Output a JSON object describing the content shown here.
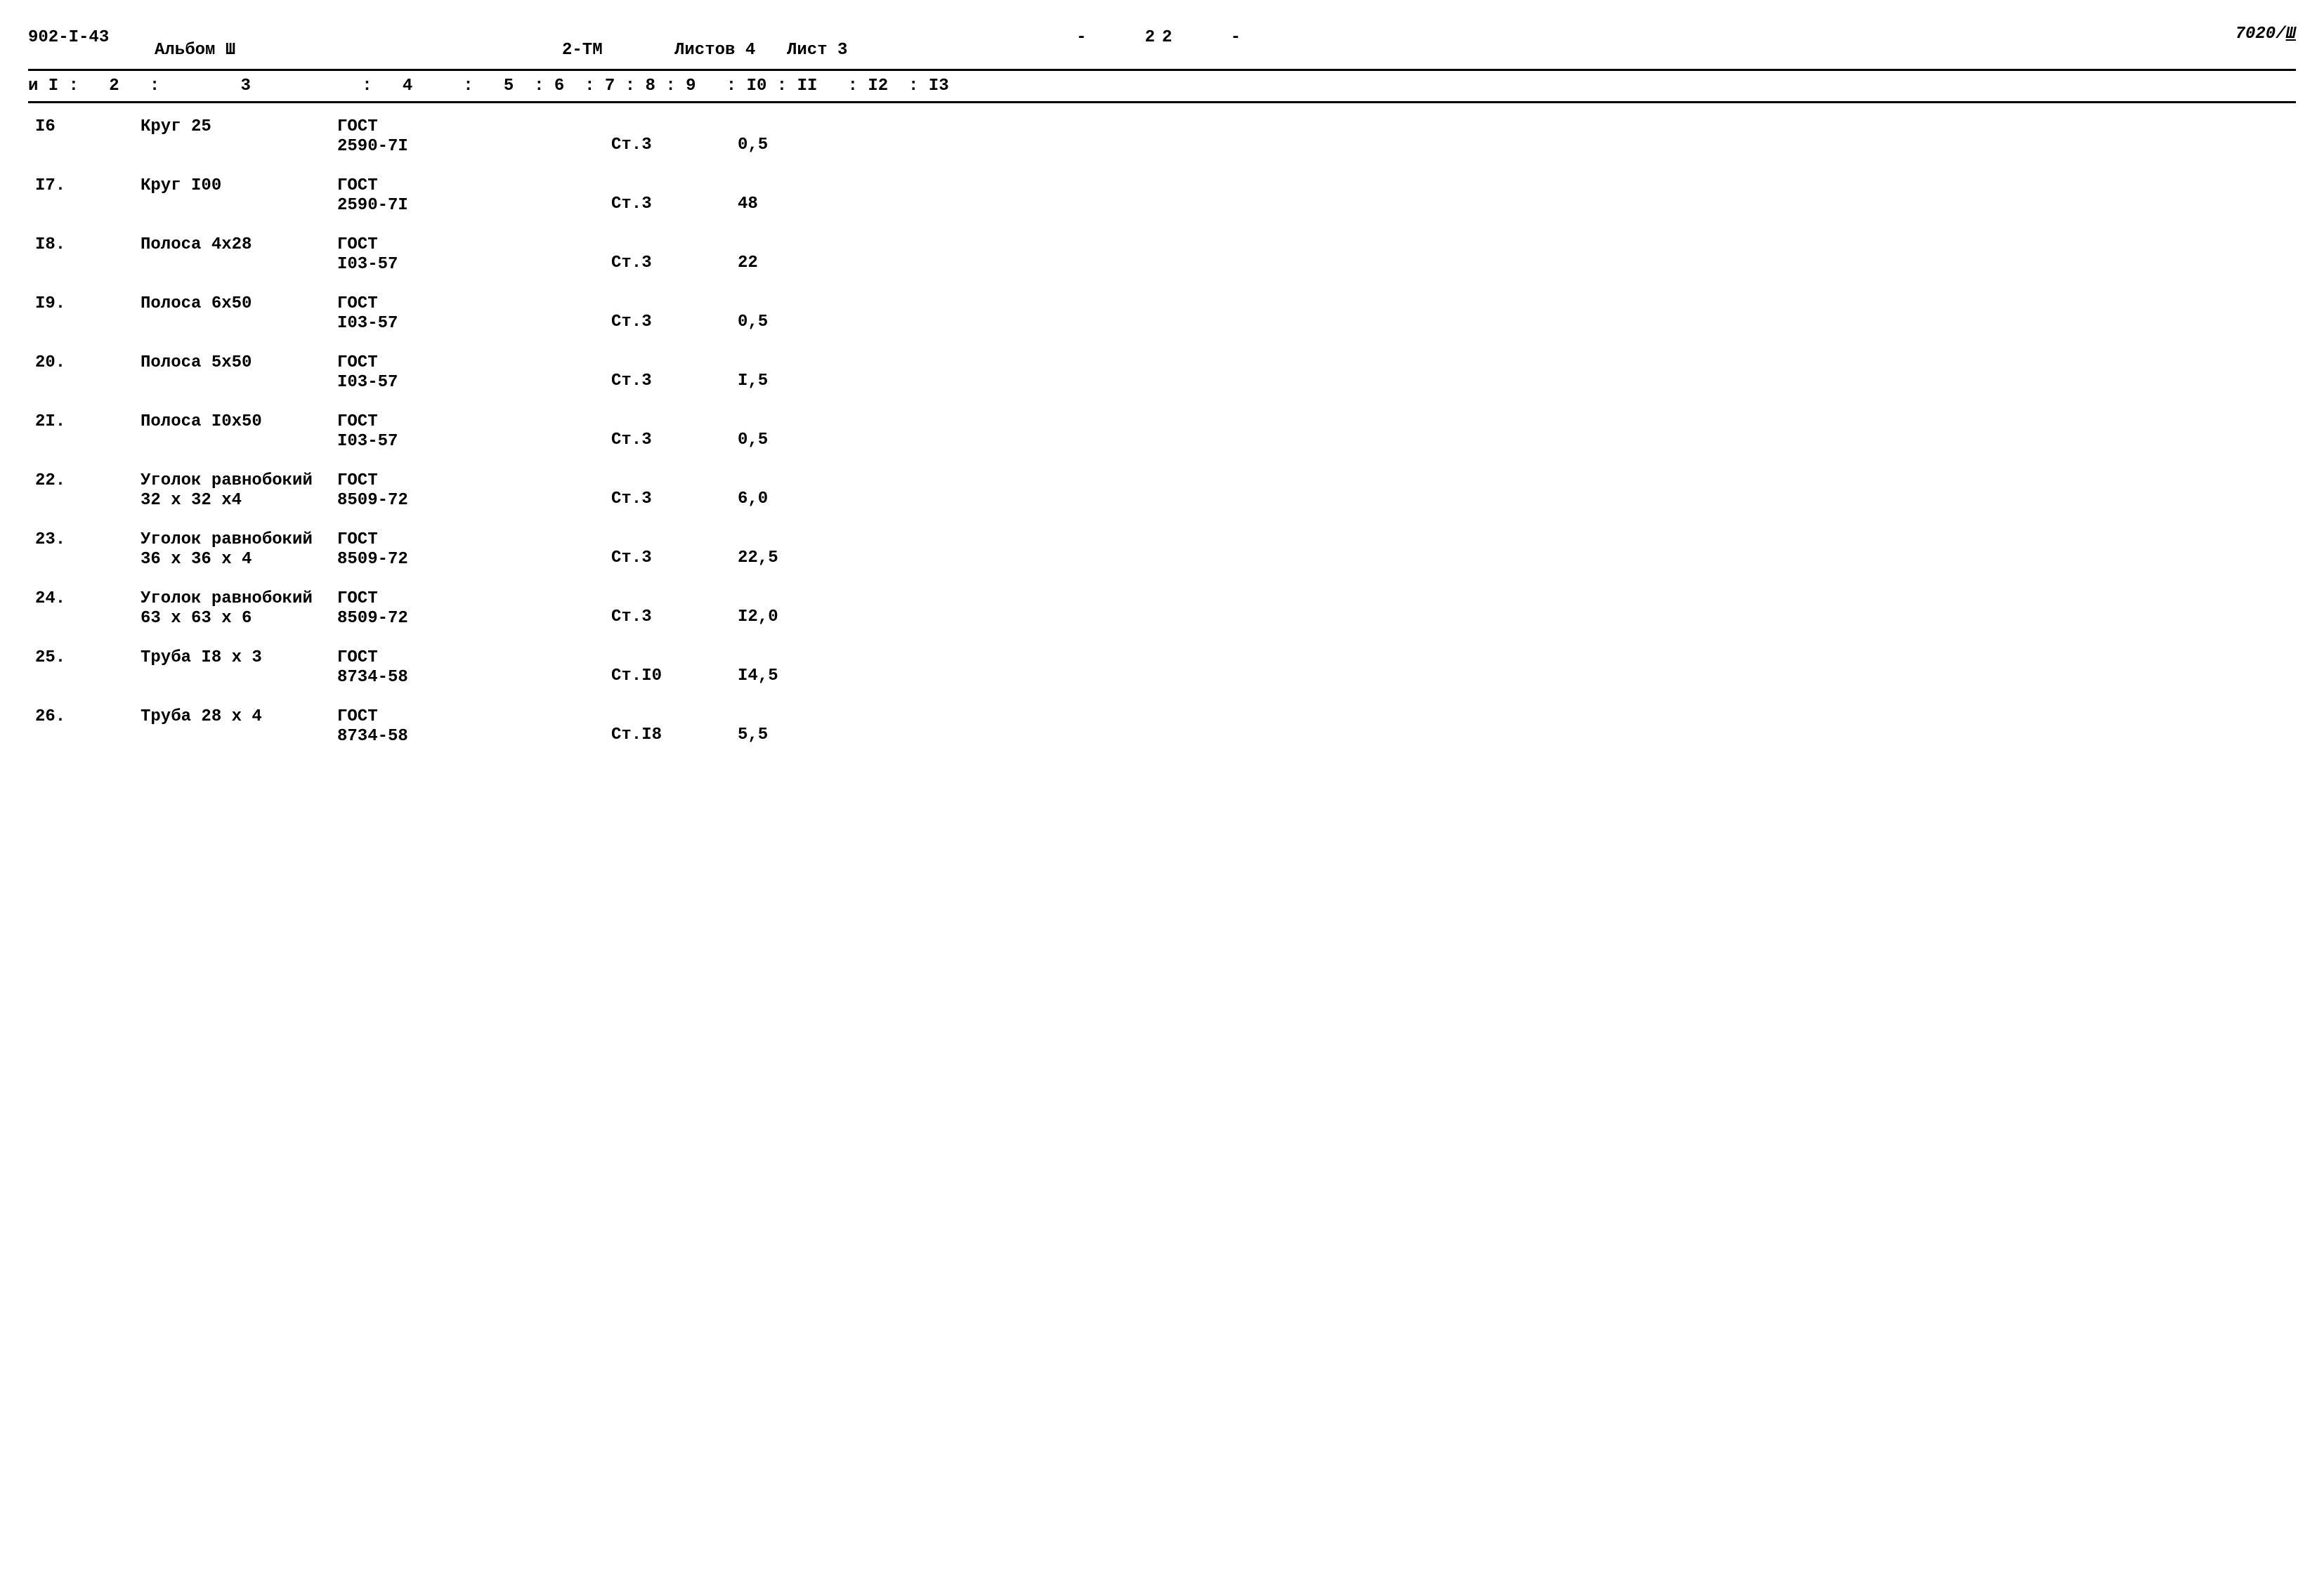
{
  "header": {
    "doc_number": "902-I-43",
    "album": "Альбом Ш",
    "page_dash_left": "-",
    "page_number": "22",
    "page_dash_right": "-",
    "tm": "2-ТМ",
    "sheets_label": "Листов 4",
    "sheet_label": "Лист 3",
    "top_right_num": "7020/",
    "top_right_roman": "Ш"
  },
  "columns": {
    "text": "и I :   2   :        3           :   4     :   5  : 6  : 7 : 8 : 9   : I0 : II   : I2  : I3"
  },
  "rows": [
    {
      "c1": "I6",
      "c3": "Круг  25",
      "c4": "ГОСТ\n2590-7I",
      "c9": "Ст.3",
      "c11": "0,5"
    },
    {
      "c1": "I7.",
      "c3": "Круг I00",
      "c4": "ГОСТ\n2590-7I",
      "c9": "Ст.3",
      "c11": "48"
    },
    {
      "c1": "I8.",
      "c3": "Полоса 4х28",
      "c4": "ГОСТ\nI03-57",
      "c9": "Ст.3",
      "c11": "22"
    },
    {
      "c1": "I9.",
      "c3": "Полоса 6х50",
      "c4": "ГОСТ\nI03-57",
      "c9": "Ст.3",
      "c11": "0,5"
    },
    {
      "c1": "20.",
      "c3": "Полоса 5х50",
      "c4": "ГОСТ\nI03-57",
      "c9": "Ст.3",
      "c11": "I,5"
    },
    {
      "c1": "2I.",
      "c3": "Полоса I0х50",
      "c4": "ГОСТ\nI03-57",
      "c9": "Ст.3",
      "c11": "0,5"
    },
    {
      "c1": "22.",
      "c3": "Уголок равнобокий\n32 х  32 х4",
      "c4": "ГОСТ\n8509-72",
      "c9": "Ст.3",
      "c11": "6,0"
    },
    {
      "c1": "23.",
      "c3": "Уголок равнобокий\n36 х 36 х 4",
      "c4": "ГОСТ\n8509-72",
      "c9": "Ст.3",
      "c11": "22,5"
    },
    {
      "c1": "24.",
      "c3": "Уголок равнобокий\n63 х 63 х 6",
      "c4": "ГОСТ\n8509-72",
      "c9": "Ст.3",
      "c11": "I2,0"
    },
    {
      "c1": "25.",
      "c3": "Труба I8 х 3",
      "c4": "ГОСТ\n8734-58",
      "c9": "Ст.I0",
      "c11": "I4,5"
    },
    {
      "c1": "26.",
      "c3": "Труба 28 х 4",
      "c4": "ГОСТ\n8734-58",
      "c9": "Ст.I8",
      "c11": "5,5"
    }
  ]
}
